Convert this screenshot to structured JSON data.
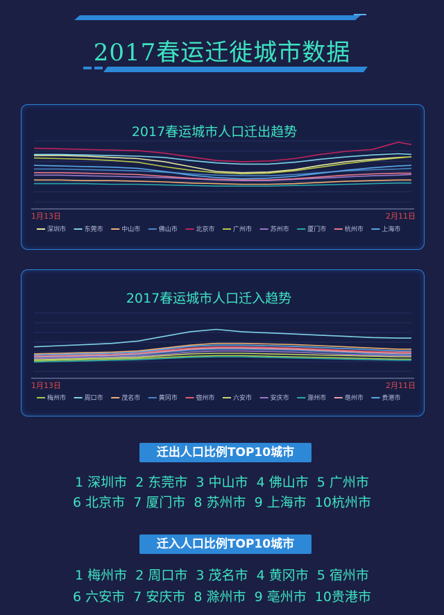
{
  "title": "2017春运迁徙城市数据",
  "outflow": {
    "title": "2017春运城市人口迁出趋势",
    "x_start": "1月13日",
    "x_end": "2月11日"
  },
  "inflow": {
    "title": "2017春运城市人口迁入趋势",
    "x_start": "1月13日",
    "x_end": "2月11日"
  },
  "top_out": {
    "heading": "迁出人口比例TOP10城市",
    "rows": [
      [
        "1 深圳市",
        "2 东莞市",
        "3 中山市",
        "4 佛山市",
        "5 广州市"
      ],
      [
        "6 北京市",
        "7 厦门市",
        "8 苏州市",
        "9 上海市",
        "10杭州市"
      ]
    ]
  },
  "top_in": {
    "heading": "迁入人口比例TOP10城市",
    "rows": [
      [
        "1 梅州市",
        "2 周口市",
        "3 茂名市",
        "4 黄冈市",
        "5 宿州市"
      ],
      [
        "6 六安市",
        "7 安庆市",
        "8 滁州市",
        "9 亳州市",
        "10贵港市"
      ]
    ]
  },
  "chart_data": [
    {
      "type": "line",
      "title": "2017春运城市人口迁出趋势",
      "x_range": [
        "1月13日",
        "2月11日"
      ],
      "x": [
        0,
        2,
        4,
        6,
        8,
        10,
        12,
        14,
        16,
        18,
        20,
        22,
        24,
        26,
        28,
        29
      ],
      "ylim": [
        0,
        100
      ],
      "grid": true,
      "legend_position": "bottom",
      "series": [
        {
          "name": "深圳市",
          "color": "#e8e8a0",
          "values": [
            76,
            76,
            75,
            73,
            71,
            66,
            58,
            50,
            48,
            49,
            53,
            60,
            66,
            70,
            73,
            74
          ]
        },
        {
          "name": "东莞市",
          "color": "#7fd3e8",
          "values": [
            78,
            78,
            77,
            76,
            75,
            73,
            68,
            64,
            62,
            62,
            65,
            70,
            74,
            77,
            79,
            78
          ]
        },
        {
          "name": "中山市",
          "color": "#f0b070",
          "values": [
            36,
            36,
            35,
            35,
            34,
            33,
            31,
            30,
            29,
            29,
            30,
            32,
            34,
            35,
            36,
            36
          ]
        },
        {
          "name": "佛山市",
          "color": "#4a86c8",
          "values": [
            54,
            54,
            53,
            52,
            51,
            49,
            46,
            44,
            43,
            43,
            45,
            48,
            51,
            53,
            54,
            55
          ]
        },
        {
          "name": "北京市",
          "color": "#c0245a",
          "values": [
            88,
            87,
            86,
            85,
            84,
            80,
            74,
            68,
            66,
            67,
            71,
            78,
            83,
            86,
            98,
            94
          ]
        },
        {
          "name": "广州市",
          "color": "#b8c84a",
          "values": [
            72,
            71,
            70,
            68,
            65,
            58,
            52,
            48,
            46,
            47,
            51,
            57,
            63,
            68,
            72,
            74
          ]
        },
        {
          "name": "苏州市",
          "color": "#9a7ac8",
          "values": [
            44,
            44,
            43,
            42,
            41,
            40,
            38,
            36,
            35,
            35,
            37,
            39,
            41,
            43,
            44,
            45
          ]
        },
        {
          "name": "厦门市",
          "color": "#2aa8a8",
          "values": [
            30,
            30,
            30,
            29,
            29,
            28,
            27,
            26,
            26,
            26,
            27,
            28,
            29,
            30,
            31,
            31
          ]
        },
        {
          "name": "杭州市",
          "color": "#e87a8a",
          "values": [
            48,
            48,
            47,
            46,
            45,
            42,
            39,
            37,
            36,
            36,
            38,
            41,
            44,
            46,
            47,
            47
          ]
        },
        {
          "name": "上海市",
          "color": "#5aa8e8",
          "values": [
            60,
            59,
            58,
            57,
            55,
            50,
            44,
            40,
            38,
            39,
            42,
            47,
            52,
            56,
            59,
            60
          ]
        }
      ]
    },
    {
      "type": "line",
      "title": "2017春运城市人口迁入趋势",
      "x_range": [
        "1月13日",
        "2月11日"
      ],
      "x": [
        0,
        2,
        4,
        6,
        8,
        10,
        12,
        14,
        16,
        18,
        20,
        22,
        24,
        26,
        28,
        29
      ],
      "ylim": [
        0,
        100
      ],
      "grid": true,
      "legend_position": "bottom",
      "series": [
        {
          "name": "梅州市",
          "color": "#a8c84a",
          "values": [
            18,
            19,
            20,
            21,
            22,
            24,
            26,
            27,
            27,
            26,
            25,
            24,
            23,
            22,
            21,
            21
          ]
        },
        {
          "name": "周口市",
          "color": "#7fd3e8",
          "values": [
            42,
            44,
            46,
            48,
            52,
            60,
            68,
            72,
            68,
            66,
            64,
            62,
            60,
            58,
            57,
            57
          ]
        },
        {
          "name": "茂名市",
          "color": "#f0b070",
          "values": [
            30,
            31,
            32,
            33,
            35,
            40,
            45,
            48,
            48,
            47,
            46,
            44,
            42,
            40,
            38,
            38
          ]
        },
        {
          "name": "黄冈市",
          "color": "#4a86c8",
          "values": [
            24,
            25,
            26,
            27,
            28,
            32,
            36,
            38,
            38,
            37,
            36,
            34,
            32,
            30,
            29,
            29
          ]
        },
        {
          "name": "宿州市",
          "color": "#e85a6a",
          "values": [
            27,
            28,
            29,
            30,
            32,
            36,
            40,
            42,
            42,
            41,
            40,
            38,
            36,
            34,
            33,
            33
          ]
        },
        {
          "name": "六安市",
          "color": "#c8d86a",
          "values": [
            20,
            21,
            22,
            23,
            24,
            27,
            30,
            31,
            31,
            30,
            29,
            28,
            27,
            26,
            25,
            25
          ]
        },
        {
          "name": "安庆市",
          "color": "#9a7ac8",
          "values": [
            22,
            23,
            24,
            25,
            26,
            29,
            33,
            35,
            35,
            34,
            33,
            31,
            29,
            28,
            27,
            27
          ]
        },
        {
          "name": "滁州市",
          "color": "#2aa8a8",
          "values": [
            16,
            17,
            18,
            19,
            20,
            22,
            24,
            25,
            25,
            24,
            23,
            22,
            21,
            20,
            19,
            19
          ]
        },
        {
          "name": "亳州市",
          "color": "#e8a0a8",
          "values": [
            25,
            26,
            27,
            28,
            30,
            34,
            38,
            40,
            40,
            39,
            38,
            36,
            34,
            32,
            31,
            31
          ]
        },
        {
          "name": "贵港市",
          "color": "#5aa8e8",
          "values": [
            28,
            29,
            30,
            31,
            33,
            38,
            43,
            45,
            45,
            44,
            43,
            41,
            39,
            37,
            35,
            35
          ]
        }
      ]
    }
  ]
}
